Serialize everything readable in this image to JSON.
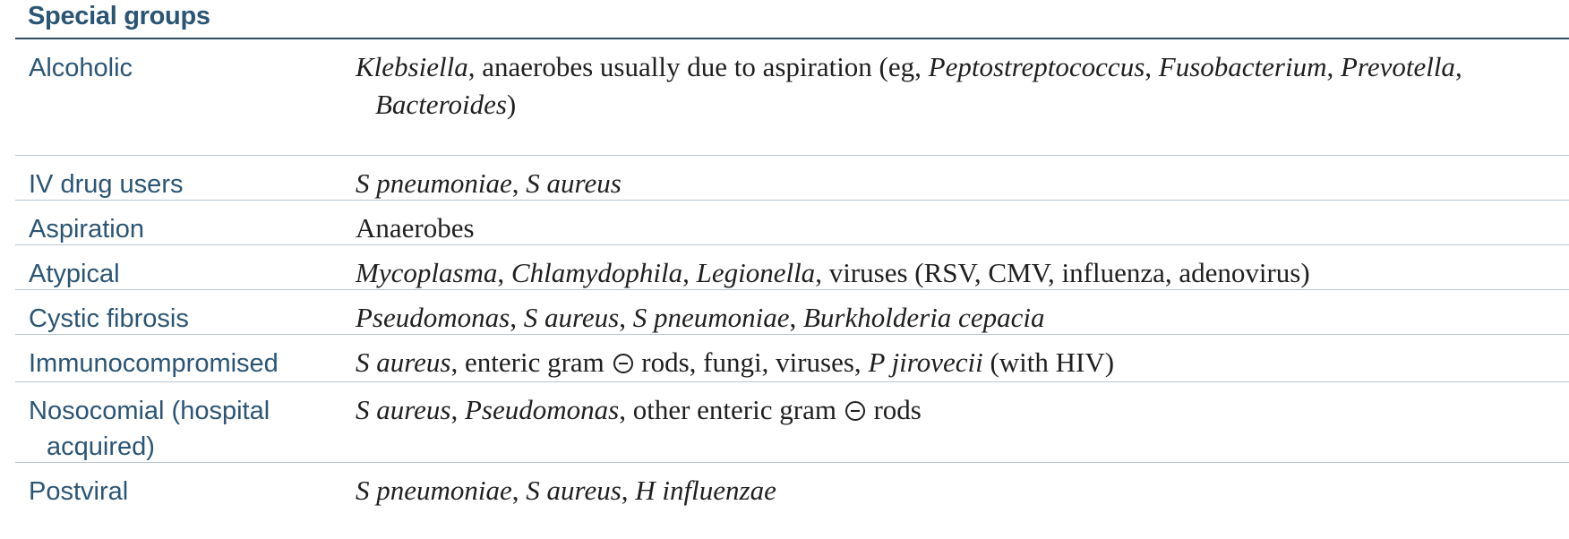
{
  "header": {
    "title": "Special groups"
  },
  "rows": [
    {
      "group": "Alcoholic",
      "segments": [
        {
          "t": "Klebsiella",
          "i": true
        },
        {
          "t": ", anaerobes usually due to aspiration (eg, ",
          "i": false
        },
        {
          "t": "Peptostreptococcus",
          "i": true
        },
        {
          "t": ", ",
          "i": false
        },
        {
          "t": "Fusobacterium",
          "i": true
        },
        {
          "t": ", ",
          "i": false
        },
        {
          "t": "Prevotella",
          "i": true
        },
        {
          "t": ", ",
          "i": false
        },
        {
          "t": "Bacteroides",
          "i": true
        },
        {
          "t": ")",
          "i": false
        }
      ]
    },
    {
      "group": "IV drug users",
      "segments": [
        {
          "t": "S pneumoniae",
          "i": true
        },
        {
          "t": ", ",
          "i": false
        },
        {
          "t": "S aureus",
          "i": true
        }
      ]
    },
    {
      "group": "Aspiration",
      "segments": [
        {
          "t": "Anaerobes",
          "i": false
        }
      ]
    },
    {
      "group": "Atypical",
      "segments": [
        {
          "t": "Mycoplasma",
          "i": true
        },
        {
          "t": ", ",
          "i": false
        },
        {
          "t": "Chlamydophila",
          "i": true
        },
        {
          "t": ", ",
          "i": false
        },
        {
          "t": "Legionella",
          "i": true
        },
        {
          "t": ", viruses (RSV, CMV, influenza, adenovirus)",
          "i": false
        }
      ]
    },
    {
      "group": "Cystic fibrosis",
      "segments": [
        {
          "t": "Pseudomonas",
          "i": true
        },
        {
          "t": ", ",
          "i": false
        },
        {
          "t": "S aureus",
          "i": true
        },
        {
          "t": ", ",
          "i": false
        },
        {
          "t": "S pneumoniae",
          "i": true
        },
        {
          "t": ", ",
          "i": false
        },
        {
          "t": "Burkholderia cepacia",
          "i": true
        }
      ]
    },
    {
      "group": "Immunocompromised",
      "segments": [
        {
          "t": "S aureus",
          "i": true
        },
        {
          "t": ", enteric gram ",
          "i": false
        },
        {
          "sym": "minus-circle"
        },
        {
          "t": " rods, fungi, viruses, ",
          "i": false
        },
        {
          "t": "P jirovecii",
          "i": true
        },
        {
          "t": " (with HIV)",
          "i": false
        }
      ]
    },
    {
      "group": "Nosocomial (hospital acquired)",
      "segments": [
        {
          "t": "S aureus",
          "i": true
        },
        {
          "t": ", ",
          "i": false
        },
        {
          "t": "Pseudomonas",
          "i": true
        },
        {
          "t": ", other enteric gram ",
          "i": false
        },
        {
          "sym": "minus-circle"
        },
        {
          "t": " rods",
          "i": false
        }
      ]
    },
    {
      "group": "Postviral",
      "segments": [
        {
          "t": "S pneumoniae",
          "i": true
        },
        {
          "t": ", ",
          "i": false
        },
        {
          "t": "S aureus",
          "i": true
        },
        {
          "t": ", ",
          "i": false
        },
        {
          "t": "H influenzae",
          "i": true
        }
      ]
    }
  ]
}
